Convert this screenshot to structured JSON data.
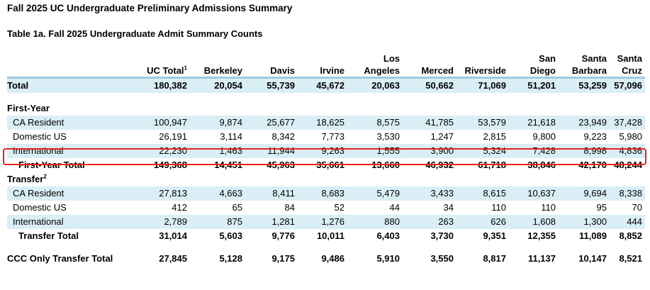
{
  "title": "Fall 2025 UC Undergraduate Preliminary Admissions Summary",
  "subtitle": "Table 1a. Fall 2025 Undergraduate Admit Summary Counts",
  "columns": {
    "uc_total": "UC Total",
    "uc_total_note": "1",
    "berkeley": "Berkeley",
    "davis": "Davis",
    "irvine": "Irvine",
    "la_1": "Los",
    "la_2": "Angeles",
    "merced": "Merced",
    "riverside": "Riverside",
    "sd_1": "San",
    "sd_2": "Diego",
    "sb_1": "Santa",
    "sb_2": "Barbara",
    "sc_1": "Santa",
    "sc_2": "Cruz"
  },
  "total": {
    "label": "Total",
    "values": [
      "180,382",
      "20,054",
      "55,739",
      "45,672",
      "20,063",
      "50,662",
      "71,069",
      "51,201",
      "53,259",
      "57,096"
    ]
  },
  "first_year": {
    "heading": "First-Year",
    "ca_resident": {
      "label": "CA Resident",
      "values": [
        "100,947",
        "9,874",
        "25,677",
        "18,625",
        "8,575",
        "41,785",
        "53,579",
        "21,618",
        "23,949",
        "37,428"
      ]
    },
    "domestic_us": {
      "label": "Domestic US",
      "values": [
        "26,191",
        "3,114",
        "8,342",
        "7,773",
        "3,530",
        "1,247",
        "2,815",
        "9,800",
        "9,223",
        "5,980"
      ]
    },
    "international": {
      "label": "International",
      "values": [
        "22,230",
        "1,463",
        "11,944",
        "9,263",
        "1,555",
        "3,900",
        "5,324",
        "7,428",
        "8,998",
        "4,836"
      ]
    },
    "total": {
      "label": "First-Year Total",
      "values": [
        "149,368",
        "14,451",
        "45,963",
        "35,661",
        "13,660",
        "46,932",
        "61,718",
        "38,846",
        "42,170",
        "48,244"
      ]
    }
  },
  "transfer": {
    "heading": "Transfer",
    "heading_note": "2",
    "ca_resident": {
      "label": "CA Resident",
      "values": [
        "27,813",
        "4,663",
        "8,411",
        "8,683",
        "5,479",
        "3,433",
        "8,615",
        "10,637",
        "9,694",
        "8,338"
      ]
    },
    "domestic_us": {
      "label": "Domestic US",
      "values": [
        "412",
        "65",
        "84",
        "52",
        "44",
        "34",
        "110",
        "110",
        "95",
        "70"
      ]
    },
    "international": {
      "label": "International",
      "values": [
        "2,789",
        "875",
        "1,281",
        "1,276",
        "880",
        "263",
        "626",
        "1,608",
        "1,300",
        "444"
      ]
    },
    "total": {
      "label": "Transfer Total",
      "values": [
        "31,014",
        "5,603",
        "9,776",
        "10,011",
        "6,403",
        "3,730",
        "9,351",
        "12,355",
        "11,089",
        "8,852"
      ]
    }
  },
  "ccc": {
    "label": "CCC Only Transfer Total",
    "values": [
      "27,845",
      "5,128",
      "9,175",
      "9,486",
      "5,910",
      "3,550",
      "8,817",
      "11,137",
      "10,147",
      "8,521"
    ]
  },
  "colors": {
    "shade": "#daeef6",
    "rule": "#9ccbe0",
    "highlight": "#e8231b"
  }
}
